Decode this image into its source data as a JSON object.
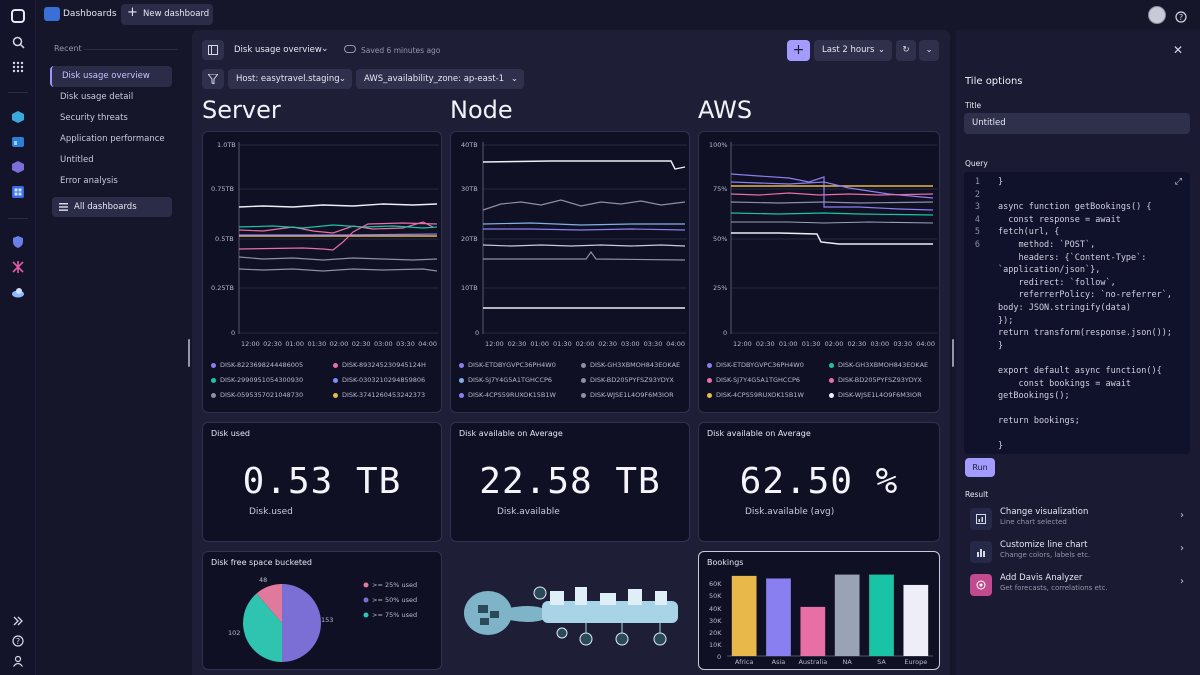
{
  "topbar": {
    "app": "Dashboards",
    "new_dashboard": "New dashboard"
  },
  "sidebar": {
    "heading": "Recent",
    "items": [
      "Disk usage overview",
      "Disk usage detail",
      "Security threats",
      "Application performance",
      "Untitled",
      "Error analysis"
    ],
    "all": "All dashboards"
  },
  "toolbar": {
    "title": "Disk usage overview",
    "saved": "Saved 6 minutes ago",
    "time": "Last 2 hours",
    "filter1": "Host: easytravel.staging",
    "filter2": "AWS_availability_zone: ap-east-1"
  },
  "sections": {
    "server": "Server",
    "node": "Node",
    "aws": "AWS"
  },
  "charts": {
    "ticks_x": [
      "12:00",
      "02:30",
      "01:00",
      "01:30",
      "02:00",
      "02:30",
      "03:00",
      "03:30",
      "04:00"
    ],
    "server": {
      "y": [
        "1.0TB",
        "0.75TB",
        "0.5TB",
        "0.25TB",
        "0"
      ],
      "legend": [
        "DISK-8223698244486005",
        "DISK-893245230945124H",
        "DISK-2990951054300930",
        "DISK-0303210294859806",
        "DISK-0595357021048730",
        "DISK-3741260453242373"
      ]
    },
    "node": {
      "y": [
        "40TB",
        "30TB",
        "20TB",
        "10TB",
        "0"
      ],
      "legend": [
        "DISK-ETDBYGVPC36PH4W0",
        "DISK-GH3XBMOH843EOKAE",
        "DISK-SJ7Y4G5A1TGHCCP6",
        "DISK-BD205PYFSZ93YDYX",
        "DISK-4CPS59RUXOK15B1W",
        "DISK-WJSE1L4O9F6M3IOR"
      ]
    },
    "aws": {
      "y": [
        "100%",
        "75%",
        "50%",
        "25%",
        "0"
      ],
      "legend": [
        "DISK-ETDBYGVPC36PH4W0",
        "DISK-GH3XBMOH843EOKAE",
        "DISK-SJ7Y4G5A1TGHCCP6",
        "DISK-BD205PYFSZ93YDYX",
        "DISK-4CPS59RUXOK15B1W",
        "DISK-WJSE1L4O9F6M3IOR"
      ]
    }
  },
  "kpis": [
    {
      "title": "Disk used",
      "value": "0.53 TB",
      "label": "Disk.used"
    },
    {
      "title": "Disk available on Average",
      "value": "22.58 TB",
      "label": "Disk.available"
    },
    {
      "title": "Disk available on Average",
      "value": "62.50 %",
      "label": "Disk.available (avg)"
    }
  ],
  "pie": {
    "title": "Disk free space bucketed",
    "slices": [
      {
        "label": ">= 25% used",
        "value": 48,
        "color": "#e07a9c"
      },
      {
        "label": ">= 50% used",
        "value": 153,
        "color": "#7b6fd6"
      },
      {
        "label": ">= 75% used",
        "value": 102,
        "color": "#2ec4b0"
      }
    ],
    "labels": [
      "48",
      "153",
      "102"
    ]
  },
  "chart_data": {
    "type": "bar",
    "title": "Bookings",
    "categories": [
      "Africa",
      "Asia",
      "Australia",
      "NA",
      "SA",
      "Europe"
    ],
    "values": [
      62,
      60,
      38,
      63,
      63,
      55
    ],
    "y_ticks": [
      "60K",
      "50K",
      "40K",
      "30K",
      "20K",
      "10K",
      "0"
    ],
    "ylim": [
      0,
      65
    ],
    "colors": [
      "#e8b84a",
      "#8a7ff0",
      "#e86fa6",
      "#9aa3b5",
      "#19c4a6",
      "#eeeef8"
    ]
  },
  "panel": {
    "title": "Tile options",
    "title_label": "Title",
    "title_value": "Untitled",
    "query_label": "Query",
    "run": "Run",
    "result_label": "Result",
    "code": [
      "}",
      "",
      "async function getBookings() {",
      "  const response = await",
      "fetch(url, {",
      "    method: `POST`,",
      "    headers: {`Content-Type`:",
      "`application/json`},",
      "    redirect: `follow`,",
      "    referrerPolicy: `no-referrer`,",
      "body: JSON.stringify(data)",
      "});",
      "return transform(response.json());",
      "}",
      "",
      "export default async function(){",
      "    const bookings = await",
      "getBookings();",
      "",
      "return bookings;",
      "",
      "}"
    ],
    "line_numbers": [
      "1",
      "2",
      "3",
      "4",
      "5",
      "6"
    ],
    "results": [
      {
        "title": "Change visualization",
        "sub": "Line chart selected"
      },
      {
        "title": "Customize line chart",
        "sub": "Change colors, labels etc."
      },
      {
        "title": "Add Davis Analyzer",
        "sub": "Get forecasts, correlations etc."
      }
    ]
  }
}
